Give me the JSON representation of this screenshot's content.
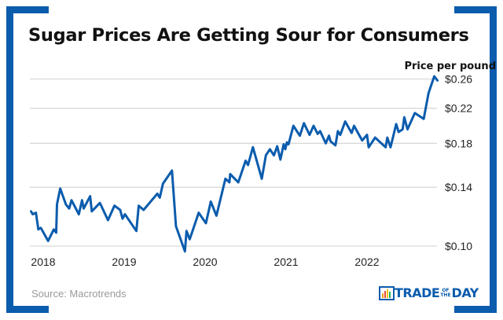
{
  "title": "Sugar Prices Are Getting Sour for Consumers",
  "source": "Source: Macrotrends",
  "logo": {
    "text_main": "TRADE",
    "text_small_top": "OF",
    "text_small_bottom": "THE",
    "text_end": "DAY"
  },
  "colors": {
    "line": "#0b5cad",
    "frame": "#0b5cad",
    "grid": "#d9d9d9",
    "source_text": "#9a9a9a"
  },
  "chart_data": {
    "type": "line",
    "title": "Sugar Prices Are Getting Sour for Consumers",
    "ylabel": "Price per pound",
    "xlabel": "",
    "y_scale": "log",
    "ylim": [
      0.1,
      0.26
    ],
    "y_ticks": [
      0.1,
      0.14,
      0.18,
      0.22,
      0.26
    ],
    "y_tick_labels": [
      "$0.10",
      "$0.14",
      "$0.18",
      "$0.22",
      "$0.26"
    ],
    "y_axis_position": "right",
    "x_ticks": [
      2018,
      2019,
      2020,
      2021,
      2022
    ],
    "x_tick_labels": [
      "2018",
      "2019",
      "2020",
      "2021",
      "2022"
    ],
    "grid": "horizontal",
    "series": [
      {
        "x": [
          2017.85,
          2017.87,
          2017.91,
          2017.94,
          2017.97,
          2018.06,
          2018.13,
          2018.16,
          2018.17,
          2018.21,
          2018.28,
          2018.32,
          2018.35,
          2018.44,
          2018.48,
          2018.5,
          2018.58,
          2018.6,
          2018.7,
          2018.8,
          2018.88,
          2018.95,
          2018.98,
          2019.01,
          2019.15,
          2019.18,
          2019.24,
          2019.41,
          2019.44,
          2019.48,
          2019.59,
          2019.64,
          2019.75,
          2019.77,
          2019.81,
          2019.92,
          2020.01,
          2020.07,
          2020.14,
          2020.25,
          2020.3,
          2020.31,
          2020.41,
          2020.5,
          2020.53,
          2020.59,
          2020.7,
          2020.75,
          2020.8,
          2020.85,
          2020.89,
          2020.93,
          2020.97,
          2020.99,
          2021.01,
          2021.03,
          2021.09,
          2021.17,
          2021.22,
          2021.29,
          2021.34,
          2021.39,
          2021.42,
          2021.49,
          2021.53,
          2021.55,
          2021.61,
          2021.64,
          2021.67,
          2021.73,
          2021.81,
          2021.84,
          2021.94,
          2022.0,
          2022.02,
          2022.1,
          2022.23,
          2022.25,
          2022.29,
          2022.36,
          2022.39,
          2022.44,
          2022.46,
          2022.5,
          2022.59,
          2022.7,
          2022.76,
          2022.83,
          2022.87
        ],
        "y": [
          0.122,
          0.12,
          0.121,
          0.11,
          0.111,
          0.103,
          0.11,
          0.108,
          0.127,
          0.139,
          0.127,
          0.124,
          0.13,
          0.12,
          0.13,
          0.124,
          0.133,
          0.122,
          0.128,
          0.116,
          0.126,
          0.123,
          0.117,
          0.12,
          0.109,
          0.126,
          0.123,
          0.135,
          0.132,
          0.143,
          0.154,
          0.112,
          0.097,
          0.109,
          0.104,
          0.121,
          0.114,
          0.129,
          0.119,
          0.147,
          0.144,
          0.151,
          0.144,
          0.163,
          0.159,
          0.176,
          0.147,
          0.168,
          0.174,
          0.168,
          0.177,
          0.164,
          0.179,
          0.174,
          0.181,
          0.179,
          0.199,
          0.188,
          0.202,
          0.189,
          0.199,
          0.19,
          0.193,
          0.18,
          0.188,
          0.182,
          0.178,
          0.193,
          0.189,
          0.204,
          0.191,
          0.199,
          0.183,
          0.189,
          0.176,
          0.186,
          0.176,
          0.186,
          0.176,
          0.201,
          0.192,
          0.195,
          0.209,
          0.195,
          0.214,
          0.207,
          0.24,
          0.264,
          0.258
        ]
      }
    ]
  }
}
